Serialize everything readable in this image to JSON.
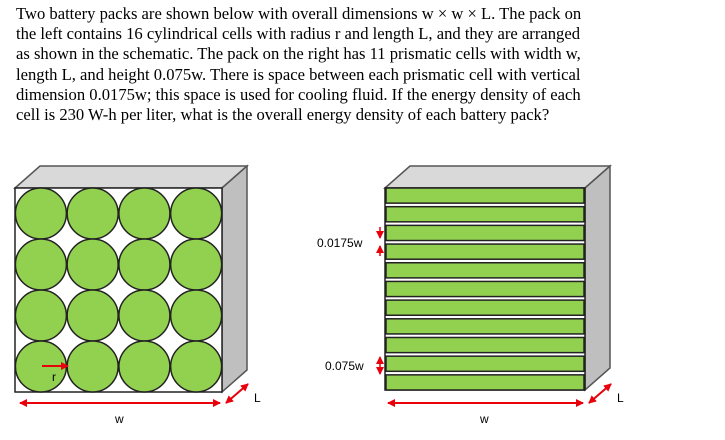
{
  "problem": {
    "lines": [
      "Two battery packs are shown below with overall dimensions w × w × L. The pack on",
      "the left contains 16 cylindrical cells with radius r and length L, and they are arranged",
      "as shown in the schematic. The pack on the right has 11 prismatic cells with width w,",
      "length L, and height 0.075w. There is space between each prismatic cell with vertical",
      "dimension 0.0175w; this space is used for cooling fluid. If the energy density of each",
      "cell is 230 W-h per liter, what is the overall energy density of each battery pack?"
    ]
  },
  "figure": {
    "left": {
      "radius_label": "r",
      "width_label": "w",
      "length_label": "L"
    },
    "right": {
      "gap_label": "0.0175w",
      "height_label": "0.075w",
      "width_label": "w",
      "length_label": "L"
    }
  }
}
